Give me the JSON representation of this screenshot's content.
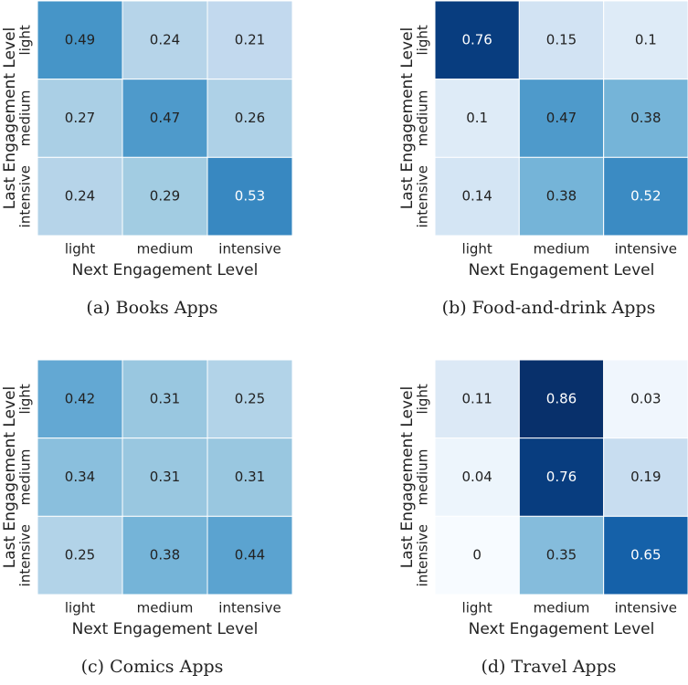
{
  "chart_data": [
    {
      "type": "heatmap",
      "caption": "(a) Books Apps",
      "x_categories": [
        "light",
        "medium",
        "intensive"
      ],
      "y_categories": [
        "light",
        "medium",
        "intensive"
      ],
      "xlabel": "Next Engagement Level",
      "ylabel": "Last Engagement Level",
      "colormap": "Blues",
      "clim": [
        0,
        0.8
      ],
      "values": [
        [
          0.49,
          0.24,
          0.21
        ],
        [
          0.27,
          0.47,
          0.26
        ],
        [
          0.24,
          0.29,
          0.53
        ]
      ]
    },
    {
      "type": "heatmap",
      "caption": "(b) Food-and-drink Apps",
      "x_categories": [
        "light",
        "medium",
        "intensive"
      ],
      "y_categories": [
        "light",
        "medium",
        "intensive"
      ],
      "xlabel": "Next Engagement Level",
      "ylabel": "Last Engagement Level",
      "colormap": "Blues",
      "clim": [
        0,
        0.8
      ],
      "values": [
        [
          0.76,
          0.15,
          0.1
        ],
        [
          0.1,
          0.47,
          0.38
        ],
        [
          0.14,
          0.38,
          0.52
        ]
      ]
    },
    {
      "type": "heatmap",
      "caption": "(c) Comics Apps",
      "x_categories": [
        "light",
        "medium",
        "intensive"
      ],
      "y_categories": [
        "light",
        "medium",
        "intensive"
      ],
      "xlabel": "Next Engagement Level",
      "ylabel": "Last Engagement Level",
      "colormap": "Blues",
      "clim": [
        0,
        0.8
      ],
      "values": [
        [
          0.42,
          0.31,
          0.25
        ],
        [
          0.34,
          0.31,
          0.31
        ],
        [
          0.25,
          0.38,
          0.44
        ]
      ]
    },
    {
      "type": "heatmap",
      "caption": "(d) Travel Apps",
      "x_categories": [
        "light",
        "medium",
        "intensive"
      ],
      "y_categories": [
        "light",
        "medium",
        "intensive"
      ],
      "xlabel": "Next Engagement Level",
      "ylabel": "Last Engagement Level",
      "colormap": "Blues",
      "clim": [
        0,
        0.8
      ],
      "values": [
        [
          0.11,
          0.86,
          0.03
        ],
        [
          0.04,
          0.76,
          0.19
        ],
        [
          0,
          0.35,
          0.65
        ]
      ]
    }
  ]
}
